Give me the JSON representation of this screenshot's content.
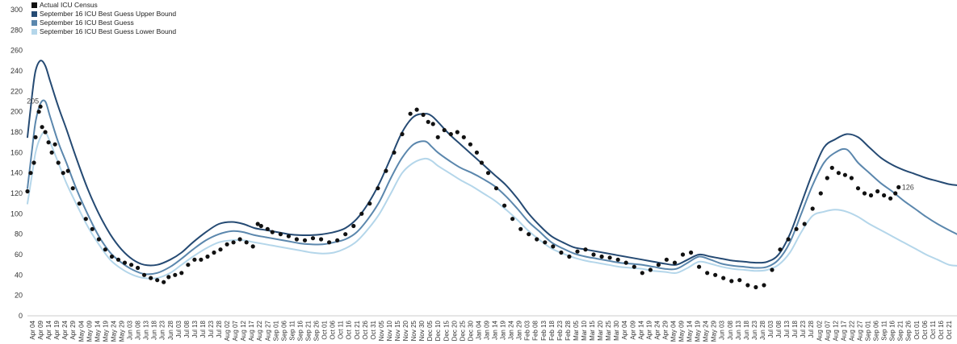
{
  "chart_data": {
    "type": "line",
    "ylim": [
      0,
      300
    ],
    "yticks": [
      0,
      20,
      40,
      60,
      80,
      100,
      120,
      140,
      160,
      180,
      200,
      220,
      240,
      260,
      280,
      300
    ],
    "x_start": "2020-04-01",
    "x_end": "2021-10-26",
    "xtick_labels": [
      "Apr 04",
      "Apr 09",
      "Apr 14",
      "Apr 19",
      "Apr 24",
      "Apr 29",
      "May 04",
      "May 09",
      "May 14",
      "May 19",
      "May 24",
      "May 29",
      "Jun 03",
      "Jun 08",
      "Jun 13",
      "Jun 18",
      "Jun 23",
      "Jun 28",
      "Jul 03",
      "Jul 08",
      "Jul 13",
      "Jul 18",
      "Jul 23",
      "Jul 28",
      "Aug 02",
      "Aug 07",
      "Aug 12",
      "Aug 17",
      "Aug 22",
      "Aug 27",
      "Sep 01",
      "Sep 06",
      "Sep 11",
      "Sep 16",
      "Sep 21",
      "Sep 26",
      "Oct 01",
      "Oct 06",
      "Oct 11",
      "Oct 16",
      "Oct 21",
      "Oct 26",
      "Oct 31",
      "Nov 05",
      "Nov 10",
      "Nov 15",
      "Nov 20",
      "Nov 25",
      "Nov 30",
      "Dec 05",
      "Dec 10",
      "Dec 15",
      "Dec 20",
      "Dec 25",
      "Dec 30",
      "Jan 04",
      "Jan 09",
      "Jan 14",
      "Jan 19",
      "Jan 24",
      "Jan 29",
      "Feb 03",
      "Feb 08",
      "Feb 13",
      "Feb 18",
      "Feb 23",
      "Feb 28",
      "Mar 05",
      "Mar 10",
      "Mar 15",
      "Mar 20",
      "Mar 25",
      "Mar 30",
      "Apr 04",
      "Apr 09",
      "Apr 14",
      "Apr 19",
      "Apr 24",
      "Apr 29",
      "May 04",
      "May 09",
      "May 14",
      "May 19",
      "May 24",
      "May 29",
      "Jun 03",
      "Jun 08",
      "Jun 13",
      "Jun 18",
      "Jun 23",
      "Jun 28",
      "Jul 03",
      "Jul 08",
      "Jul 13",
      "Jul 18",
      "Jul 23",
      "Jul 28",
      "Aug 02",
      "Aug 07",
      "Aug 12",
      "Aug 17",
      "Aug 22",
      "Aug 27",
      "Sep 01",
      "Sep 06",
      "Sep 11",
      "Sep 16",
      "Sep 21",
      "Sep 26",
      "Oct 01",
      "Oct 06",
      "Oct 11",
      "Oct 16",
      "Oct 21"
    ],
    "legend_position": "top-left",
    "grid": false,
    "series": [
      {
        "name": "Actual ICU Census",
        "kind": "scatter",
        "color": "#111111",
        "x": [
          "2020-04-01",
          "2020-04-03",
          "2020-04-05",
          "2020-04-06",
          "2020-04-08",
          "2020-04-09",
          "2020-04-10",
          "2020-04-12",
          "2020-04-14",
          "2020-04-16",
          "2020-04-18",
          "2020-04-20",
          "2020-04-23",
          "2020-04-26",
          "2020-04-29",
          "2020-05-03",
          "2020-05-07",
          "2020-05-11",
          "2020-05-15",
          "2020-05-19",
          "2020-05-23",
          "2020-05-27",
          "2020-05-31",
          "2020-06-04",
          "2020-06-08",
          "2020-06-12",
          "2020-06-16",
          "2020-06-20",
          "2020-06-24",
          "2020-06-27",
          "2020-07-01",
          "2020-07-05",
          "2020-07-09",
          "2020-07-13",
          "2020-07-17",
          "2020-07-21",
          "2020-07-25",
          "2020-07-29",
          "2020-08-02",
          "2020-08-06",
          "2020-08-10",
          "2020-08-14",
          "2020-08-18",
          "2020-08-21",
          "2020-08-23",
          "2020-08-27",
          "2020-08-30",
          "2020-09-04",
          "2020-09-09",
          "2020-09-14",
          "2020-09-19",
          "2020-09-24",
          "2020-09-29",
          "2020-10-04",
          "2020-10-09",
          "2020-10-14",
          "2020-10-19",
          "2020-10-24",
          "2020-10-29",
          "2020-11-03",
          "2020-11-08",
          "2020-11-13",
          "2020-11-18",
          "2020-11-23",
          "2020-11-27",
          "2020-12-01",
          "2020-12-04",
          "2020-12-07",
          "2020-12-10",
          "2020-12-14",
          "2020-12-18",
          "2020-12-22",
          "2020-12-26",
          "2020-12-30",
          "2021-01-03",
          "2021-01-06",
          "2021-01-10",
          "2021-01-15",
          "2021-01-20",
          "2021-01-25",
          "2021-01-30",
          "2021-02-04",
          "2021-02-09",
          "2021-02-14",
          "2021-02-19",
          "2021-02-24",
          "2021-03-01",
          "2021-03-06",
          "2021-03-11",
          "2021-03-16",
          "2021-03-21",
          "2021-03-26",
          "2021-03-31",
          "2021-04-05",
          "2021-04-10",
          "2021-04-15",
          "2021-04-20",
          "2021-04-25",
          "2021-04-30",
          "2021-05-05",
          "2021-05-10",
          "2021-05-15",
          "2021-05-20",
          "2021-05-25",
          "2021-05-30",
          "2021-06-04",
          "2021-06-09",
          "2021-06-14",
          "2021-06-19",
          "2021-06-24",
          "2021-06-29",
          "2021-07-04",
          "2021-07-09",
          "2021-07-14",
          "2021-07-19",
          "2021-07-24",
          "2021-07-29",
          "2021-08-03",
          "2021-08-07",
          "2021-08-10",
          "2021-08-14",
          "2021-08-18",
          "2021-08-22",
          "2021-08-26",
          "2021-08-30",
          "2021-09-03",
          "2021-09-07",
          "2021-09-11",
          "2021-09-15",
          "2021-09-18",
          "2021-09-20"
        ],
        "values": [
          122,
          140,
          150,
          175,
          200,
          205,
          185,
          180,
          170,
          160,
          168,
          150,
          140,
          142,
          125,
          110,
          95,
          85,
          75,
          65,
          58,
          55,
          52,
          50,
          47,
          40,
          37,
          35,
          33,
          38,
          40,
          42,
          50,
          55,
          55,
          58,
          62,
          65,
          70,
          72,
          75,
          72,
          68,
          90,
          88,
          85,
          82,
          80,
          78,
          75,
          74,
          76,
          75,
          72,
          74,
          80,
          88,
          100,
          110,
          125,
          142,
          160,
          178,
          198,
          202,
          197,
          190,
          188,
          175,
          182,
          178,
          180,
          175,
          168,
          160,
          150,
          140,
          125,
          108,
          95,
          85,
          80,
          75,
          72,
          68,
          62,
          58,
          63,
          65,
          60,
          58,
          57,
          55,
          52,
          48,
          42,
          45,
          50,
          55,
          52,
          60,
          62,
          48,
          42,
          40,
          37,
          34,
          35,
          30,
          28,
          30,
          45,
          65,
          75,
          85,
          90,
          105,
          120,
          135,
          145,
          140,
          138,
          135,
          125,
          120,
          118,
          122,
          118,
          115,
          120,
          126
        ]
      },
      {
        "name": "September 16 ICU Best Guess Upper Bound",
        "kind": "line",
        "color": "#254a73",
        "x": [
          "2020-04-01",
          "2020-04-04",
          "2020-04-06",
          "2020-04-09",
          "2020-04-12",
          "2020-04-15",
          "2020-04-20",
          "2020-04-25",
          "2020-05-01",
          "2020-05-08",
          "2020-05-15",
          "2020-05-22",
          "2020-05-29",
          "2020-06-05",
          "2020-06-12",
          "2020-06-20",
          "2020-06-28",
          "2020-07-05",
          "2020-07-12",
          "2020-07-20",
          "2020-07-28",
          "2020-08-05",
          "2020-08-12",
          "2020-08-19",
          "2020-08-26",
          "2020-09-02",
          "2020-09-09",
          "2020-09-16",
          "2020-09-23",
          "2020-09-30",
          "2020-10-07",
          "2020-10-14",
          "2020-10-21",
          "2020-10-28",
          "2020-11-04",
          "2020-11-11",
          "2020-11-18",
          "2020-11-25",
          "2020-12-02",
          "2020-12-06",
          "2020-12-10",
          "2020-12-17",
          "2020-12-24",
          "2020-12-31",
          "2021-01-07",
          "2021-01-14",
          "2021-01-21",
          "2021-01-28",
          "2021-02-04",
          "2021-02-11",
          "2021-02-18",
          "2021-02-25",
          "2021-03-04",
          "2021-03-11",
          "2021-03-18",
          "2021-03-25",
          "2021-04-01",
          "2021-04-08",
          "2021-04-15",
          "2021-04-22",
          "2021-04-29",
          "2021-05-06",
          "2021-05-13",
          "2021-05-20",
          "2021-05-27",
          "2021-06-03",
          "2021-06-10",
          "2021-06-17",
          "2021-06-24",
          "2021-07-01",
          "2021-07-08",
          "2021-07-15",
          "2021-07-22",
          "2021-07-29",
          "2021-08-05",
          "2021-08-12",
          "2021-08-19",
          "2021-08-26",
          "2021-09-02",
          "2021-09-09",
          "2021-09-16",
          "2021-09-23",
          "2021-09-30",
          "2021-10-07",
          "2021-10-14",
          "2021-10-21",
          "2021-10-26"
        ],
        "values": [
          175,
          218,
          240,
          250,
          245,
          230,
          205,
          183,
          155,
          125,
          100,
          80,
          65,
          55,
          50,
          50,
          55,
          62,
          72,
          82,
          90,
          92,
          90,
          86,
          84,
          82,
          80,
          79,
          79,
          80,
          82,
          86,
          95,
          110,
          130,
          155,
          180,
          195,
          198,
          196,
          190,
          178,
          168,
          158,
          148,
          138,
          128,
          115,
          100,
          88,
          78,
          72,
          67,
          65,
          63,
          61,
          59,
          57,
          55,
          53,
          51,
          50,
          55,
          60,
          58,
          56,
          54,
          53,
          52,
          53,
          60,
          80,
          110,
          140,
          165,
          173,
          178,
          175,
          165,
          155,
          148,
          143,
          139,
          135,
          132,
          129,
          128
        ]
      },
      {
        "name": "September 16 ICU Best Guess",
        "kind": "line",
        "color": "#5b87ad",
        "x": [
          "2020-04-01",
          "2020-04-04",
          "2020-04-06",
          "2020-04-09",
          "2020-04-12",
          "2020-04-15",
          "2020-04-20",
          "2020-04-25",
          "2020-05-01",
          "2020-05-08",
          "2020-05-15",
          "2020-05-22",
          "2020-05-29",
          "2020-06-05",
          "2020-06-12",
          "2020-06-20",
          "2020-06-28",
          "2020-07-05",
          "2020-07-12",
          "2020-07-20",
          "2020-07-28",
          "2020-08-05",
          "2020-08-12",
          "2020-08-19",
          "2020-08-26",
          "2020-09-02",
          "2020-09-09",
          "2020-09-16",
          "2020-09-23",
          "2020-09-30",
          "2020-10-07",
          "2020-10-14",
          "2020-10-21",
          "2020-10-28",
          "2020-11-04",
          "2020-11-11",
          "2020-11-18",
          "2020-11-25",
          "2020-12-02",
          "2020-12-06",
          "2020-12-10",
          "2020-12-17",
          "2020-12-24",
          "2020-12-31",
          "2021-01-07",
          "2021-01-14",
          "2021-01-21",
          "2021-01-28",
          "2021-02-04",
          "2021-02-11",
          "2021-02-18",
          "2021-02-25",
          "2021-03-04",
          "2021-03-11",
          "2021-03-18",
          "2021-03-25",
          "2021-04-01",
          "2021-04-08",
          "2021-04-15",
          "2021-04-22",
          "2021-04-29",
          "2021-05-06",
          "2021-05-13",
          "2021-05-20",
          "2021-05-27",
          "2021-06-03",
          "2021-06-10",
          "2021-06-17",
          "2021-06-24",
          "2021-07-01",
          "2021-07-08",
          "2021-07-15",
          "2021-07-22",
          "2021-07-29",
          "2021-08-05",
          "2021-08-12",
          "2021-08-19",
          "2021-08-26",
          "2021-09-02",
          "2021-09-09",
          "2021-09-16",
          "2021-09-23",
          "2021-09-30",
          "2021-10-07",
          "2021-10-14",
          "2021-10-21",
          "2021-10-26"
        ],
        "values": [
          125,
          165,
          190,
          208,
          210,
          195,
          170,
          150,
          125,
          100,
          78,
          62,
          52,
          45,
          41,
          42,
          48,
          56,
          65,
          74,
          80,
          83,
          82,
          79,
          77,
          75,
          73,
          71,
          70,
          70,
          72,
          75,
          82,
          95,
          112,
          135,
          155,
          168,
          171,
          166,
          160,
          152,
          145,
          140,
          134,
          127,
          117,
          105,
          92,
          82,
          72,
          66,
          61,
          58,
          56,
          54,
          52,
          51,
          50,
          48,
          46,
          46,
          52,
          58,
          55,
          51,
          49,
          48,
          47,
          48,
          55,
          72,
          100,
          128,
          150,
          160,
          163,
          150,
          140,
          130,
          122,
          113,
          105,
          97,
          90,
          84,
          80
        ]
      },
      {
        "name": "September 16 ICU Best Guess Lower Bound",
        "kind": "line",
        "color": "#b4d6ea",
        "x": [
          "2020-04-01",
          "2020-04-04",
          "2020-04-06",
          "2020-04-09",
          "2020-04-12",
          "2020-04-15",
          "2020-04-20",
          "2020-04-25",
          "2020-05-01",
          "2020-05-08",
          "2020-05-15",
          "2020-05-22",
          "2020-05-29",
          "2020-06-05",
          "2020-06-12",
          "2020-06-20",
          "2020-06-28",
          "2020-07-05",
          "2020-07-12",
          "2020-07-20",
          "2020-07-28",
          "2020-08-05",
          "2020-08-12",
          "2020-08-19",
          "2020-08-26",
          "2020-09-02",
          "2020-09-09",
          "2020-09-16",
          "2020-09-23",
          "2020-09-30",
          "2020-10-07",
          "2020-10-14",
          "2020-10-21",
          "2020-10-28",
          "2020-11-04",
          "2020-11-11",
          "2020-11-18",
          "2020-11-25",
          "2020-12-02",
          "2020-12-06",
          "2020-12-10",
          "2020-12-17",
          "2020-12-24",
          "2020-12-31",
          "2021-01-07",
          "2021-01-14",
          "2021-01-21",
          "2021-01-28",
          "2021-02-04",
          "2021-02-11",
          "2021-02-18",
          "2021-02-25",
          "2021-03-04",
          "2021-03-11",
          "2021-03-18",
          "2021-03-25",
          "2021-04-01",
          "2021-04-08",
          "2021-04-15",
          "2021-04-22",
          "2021-04-29",
          "2021-05-06",
          "2021-05-13",
          "2021-05-20",
          "2021-05-27",
          "2021-06-03",
          "2021-06-10",
          "2021-06-17",
          "2021-06-24",
          "2021-07-01",
          "2021-07-08",
          "2021-07-15",
          "2021-07-22",
          "2021-07-29",
          "2021-08-05",
          "2021-08-12",
          "2021-08-19",
          "2021-08-26",
          "2021-09-02",
          "2021-09-09",
          "2021-09-16",
          "2021-09-23",
          "2021-09-30",
          "2021-10-07",
          "2021-10-14",
          "2021-10-21",
          "2021-10-26"
        ],
        "values": [
          110,
          140,
          160,
          175,
          180,
          170,
          150,
          130,
          110,
          88,
          70,
          55,
          46,
          40,
          37,
          37,
          42,
          50,
          58,
          66,
          72,
          74,
          74,
          72,
          70,
          68,
          66,
          64,
          62,
          61,
          62,
          66,
          73,
          85,
          100,
          120,
          140,
          150,
          154,
          152,
          147,
          140,
          133,
          127,
          120,
          113,
          104,
          94,
          83,
          74,
          66,
          61,
          57,
          54,
          52,
          50,
          48,
          47,
          46,
          44,
          43,
          42,
          47,
          53,
          51,
          48,
          46,
          45,
          44,
          45,
          50,
          62,
          82,
          98,
          102,
          104,
          102,
          97,
          90,
          84,
          78,
          72,
          66,
          60,
          55,
          50,
          49
        ]
      }
    ],
    "annotations": [
      {
        "text": "205",
        "x": "2020-04-09",
        "y": 205
      },
      {
        "text": "126",
        "x": "2021-09-20",
        "y": 126
      }
    ]
  }
}
